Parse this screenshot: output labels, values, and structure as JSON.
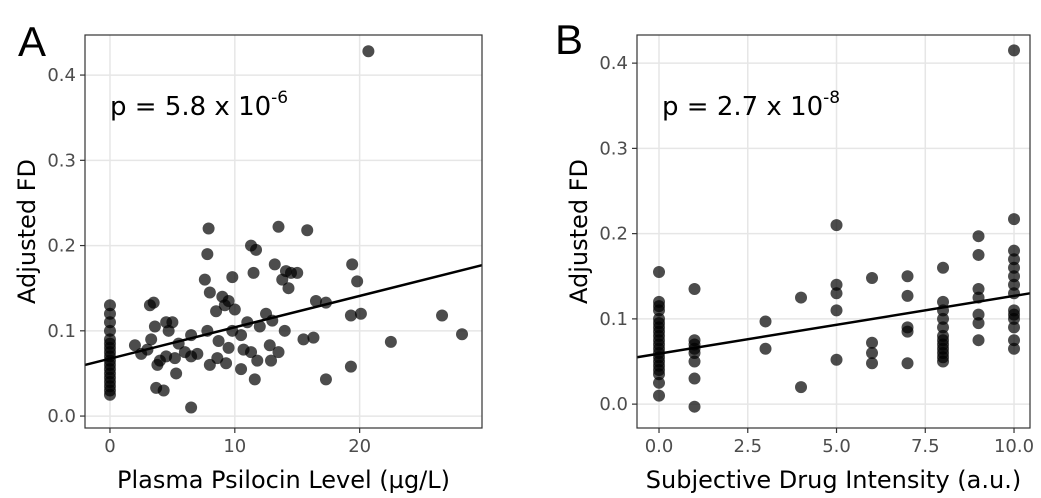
{
  "chart_data": [
    {
      "type": "scatter",
      "panel_label": "A",
      "ylabel": "Adjusted FD",
      "xlabel": "Plasma Psilocin Level (µg/L)",
      "annotation": {
        "text": "p = 5.8 x 10",
        "superscript": "-6"
      },
      "xlim": [
        -2,
        29.8
      ],
      "ylim": [
        -0.014,
        0.447
      ],
      "xticks": [
        0,
        10,
        20
      ],
      "yticks": [
        {
          "value": 0,
          "label": "0.0"
        },
        0.1,
        0.2,
        0.3,
        0.4
      ],
      "grid": true,
      "color": "#000000",
      "opacity": 0.7,
      "x": [
        0,
        0,
        0,
        0,
        0,
        0,
        0,
        0,
        0,
        0,
        0,
        0,
        0,
        0,
        0,
        0,
        0,
        0,
        20.7,
        7.9,
        13.5,
        15.8,
        11.3,
        11.7,
        7.8,
        19.4,
        13.2,
        14.1,
        14.5,
        15,
        11.5,
        9.8,
        7.6,
        13.8,
        19.8,
        14.3,
        8,
        9,
        9.5,
        16.5,
        17.3,
        9.2,
        3.5,
        3.2,
        10,
        8.5,
        12.5,
        19.3,
        20.1,
        26.6,
        4.5,
        3.6,
        5,
        11,
        13,
        12,
        14,
        9.8,
        7.8,
        6.5,
        4.7,
        3.3,
        10.5,
        15.5,
        16.3,
        28.2,
        22.5,
        8.7,
        5.5,
        2,
        12.8,
        9.5,
        3,
        6,
        7,
        10.7,
        11.3,
        13.5,
        2.5,
        4.5,
        5.2,
        6.5,
        8.6,
        9.3,
        11.8,
        12.9,
        19.3,
        4,
        3.8,
        8,
        10.5,
        5.3,
        17.3,
        11.6,
        3.7,
        4.3,
        6.5
      ],
      "values": [
        0.13,
        0.12,
        0.11,
        0.1,
        0.09,
        0.085,
        0.08,
        0.075,
        0.07,
        0.065,
        0.06,
        0.055,
        0.05,
        0.045,
        0.04,
        0.035,
        0.03,
        0.025,
        0.428,
        0.22,
        0.222,
        0.218,
        0.2,
        0.195,
        0.19,
        0.178,
        0.178,
        0.17,
        0.168,
        0.168,
        0.168,
        0.163,
        0.16,
        0.16,
        0.158,
        0.15,
        0.145,
        0.14,
        0.135,
        0.135,
        0.133,
        0.13,
        0.133,
        0.13,
        0.125,
        0.123,
        0.12,
        0.118,
        0.12,
        0.118,
        0.11,
        0.105,
        0.11,
        0.11,
        0.112,
        0.105,
        0.1,
        0.1,
        0.1,
        0.095,
        0.1,
        0.09,
        0.095,
        0.09,
        0.092,
        0.096,
        0.087,
        0.088,
        0.085,
        0.083,
        0.083,
        0.08,
        0.078,
        0.075,
        0.073,
        0.078,
        0.075,
        0.075,
        0.073,
        0.07,
        0.068,
        0.07,
        0.068,
        0.062,
        0.065,
        0.065,
        0.058,
        0.065,
        0.06,
        0.06,
        0.055,
        0.05,
        0.043,
        0.043,
        0.033,
        0.03,
        0.01
      ],
      "trend_line": {
        "x": [
          -2,
          29.8
        ],
        "values": [
          0.06,
          0.177
        ],
        "color": "#000000"
      }
    },
    {
      "type": "scatter",
      "panel_label": "B",
      "ylabel": "Adjusted FD",
      "xlabel": "Subjective Drug Intensity (a.u.)",
      "annotation": {
        "text": "p = 2.7 x 10",
        "superscript": "-8"
      },
      "xlim": [
        -0.62,
        10.45
      ],
      "ylim": [
        -0.028,
        0.433
      ],
      "xticks": [
        {
          "value": 0,
          "label": "0.0"
        },
        2.5,
        {
          "value": 5,
          "label": "5.0"
        },
        7.5,
        {
          "value": 10,
          "label": "10.0"
        }
      ],
      "yticks": [
        {
          "value": 0,
          "label": "0.0"
        },
        0.1,
        0.2,
        0.3,
        0.4
      ],
      "grid": true,
      "color": "#000000",
      "opacity": 0.7,
      "x": [
        0,
        0,
        0,
        0,
        0,
        0,
        0,
        0,
        0,
        0,
        0,
        0,
        0,
        0,
        0,
        0,
        0,
        0,
        0,
        0,
        1,
        1,
        1,
        1,
        1,
        1,
        1,
        1,
        3,
        3,
        4,
        4,
        5,
        5,
        5,
        5,
        5,
        6,
        6,
        6,
        6,
        7,
        7,
        7,
        7,
        7,
        8,
        8,
        8,
        8,
        8,
        8,
        8,
        8,
        8,
        8,
        8,
        8,
        9,
        9,
        9,
        9,
        9,
        9,
        9,
        10,
        10,
        10,
        10,
        10,
        10,
        10,
        10,
        10,
        10,
        10,
        10,
        10,
        10
      ],
      "values": [
        0.155,
        0.12,
        0.115,
        0.11,
        0.1,
        0.095,
        0.09,
        0.085,
        0.08,
        0.075,
        0.07,
        0.065,
        0.06,
        0.055,
        0.05,
        0.045,
        0.04,
        0.035,
        0.025,
        0.01,
        0.135,
        0.075,
        0.07,
        0.065,
        0.06,
        0.05,
        0.03,
        -0.003,
        0.097,
        0.065,
        0.125,
        0.02,
        0.21,
        0.14,
        0.13,
        0.11,
        0.052,
        0.148,
        0.072,
        0.06,
        0.048,
        0.15,
        0.127,
        0.09,
        0.085,
        0.048,
        0.16,
        0.12,
        0.11,
        0.1,
        0.09,
        0.08,
        0.075,
        0.07,
        0.065,
        0.06,
        0.055,
        0.05,
        0.197,
        0.175,
        0.135,
        0.125,
        0.105,
        0.095,
        0.075,
        0.415,
        0.217,
        0.18,
        0.17,
        0.16,
        0.15,
        0.14,
        0.13,
        0.11,
        0.105,
        0.1,
        0.09,
        0.075,
        0.065
      ],
      "trend_line": {
        "x": [
          -0.62,
          10.45
        ],
        "values": [
          0.055,
          0.13
        ],
        "color": "#000000"
      }
    }
  ]
}
